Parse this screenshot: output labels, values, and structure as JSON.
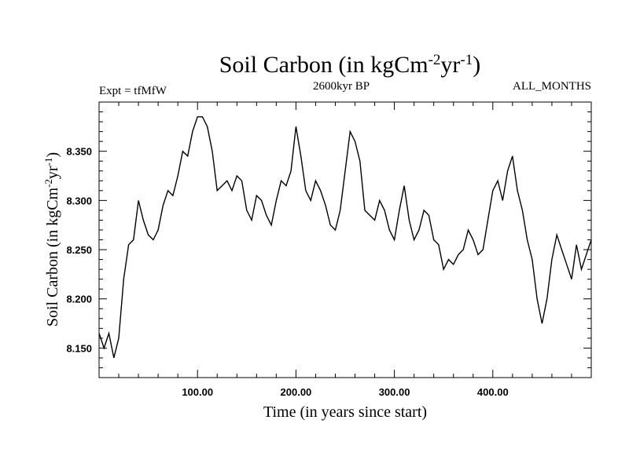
{
  "chart_data": {
    "type": "line",
    "title": "Soil Carbon (in kgCm",
    "title_unit_parts": [
      "-2",
      "yr",
      "-1",
      ")"
    ],
    "left_label": "Expt = tfMfW",
    "center_label": "2600kyr BP",
    "right_label": "ALL_MONTHS",
    "xlabel": "Time (in years since start)",
    "ylabel": "Soil Carbon (in kgCm",
    "ylabel_unit_parts": [
      "-2",
      "yr",
      "-1",
      ")"
    ],
    "xlim": [
      0,
      500
    ],
    "ylim": [
      8.12,
      8.4
    ],
    "xticks": [
      100,
      200,
      300,
      400
    ],
    "xtick_labels": [
      "100.00",
      "200.00",
      "300.00",
      "400.00"
    ],
    "yticks": [
      8.15,
      8.2,
      8.25,
      8.3,
      8.35
    ],
    "ytick_labels": [
      "8.150",
      "8.200",
      "8.250",
      "8.300",
      "8.350"
    ],
    "grid": false,
    "line_color": "#000000",
    "series": [
      {
        "name": "Soil Carbon",
        "x": [
          0,
          5,
          10,
          15,
          20,
          25,
          30,
          35,
          40,
          45,
          50,
          55,
          60,
          65,
          70,
          75,
          80,
          85,
          90,
          95,
          100,
          105,
          110,
          115,
          120,
          125,
          130,
          135,
          140,
          145,
          150,
          155,
          160,
          165,
          170,
          175,
          180,
          185,
          190,
          195,
          200,
          205,
          210,
          215,
          220,
          225,
          230,
          235,
          240,
          245,
          250,
          255,
          260,
          265,
          270,
          275,
          280,
          285,
          290,
          295,
          300,
          305,
          310,
          315,
          320,
          325,
          330,
          335,
          340,
          345,
          350,
          355,
          360,
          365,
          370,
          375,
          380,
          385,
          390,
          395,
          400,
          405,
          410,
          415,
          420,
          425,
          430,
          435,
          440,
          445,
          450,
          455,
          460,
          465,
          470,
          475,
          480,
          485,
          490,
          495,
          500
        ],
        "values": [
          8.165,
          8.15,
          8.165,
          8.14,
          8.16,
          8.22,
          8.255,
          8.26,
          8.3,
          8.28,
          8.265,
          8.26,
          8.27,
          8.295,
          8.31,
          8.305,
          8.325,
          8.35,
          8.345,
          8.37,
          8.385,
          8.385,
          8.375,
          8.35,
          8.31,
          8.315,
          8.32,
          8.31,
          8.325,
          8.32,
          8.29,
          8.28,
          8.305,
          8.3,
          8.285,
          8.275,
          8.3,
          8.32,
          8.315,
          8.33,
          8.375,
          8.345,
          8.31,
          8.3,
          8.32,
          8.31,
          8.295,
          8.275,
          8.27,
          8.29,
          8.33,
          8.37,
          8.36,
          8.34,
          8.29,
          8.285,
          8.28,
          8.3,
          8.29,
          8.27,
          8.26,
          8.29,
          8.315,
          8.28,
          8.26,
          8.27,
          8.29,
          8.285,
          8.26,
          8.255,
          8.23,
          8.24,
          8.235,
          8.245,
          8.25,
          8.27,
          8.26,
          8.245,
          8.25,
          8.28,
          8.31,
          8.32,
          8.3,
          8.33,
          8.345,
          8.31,
          8.29,
          8.26,
          8.24,
          8.2,
          8.175,
          8.2,
          8.24,
          8.265,
          8.25,
          8.235,
          8.22,
          8.255,
          8.23,
          8.245,
          8.26
        ]
      }
    ]
  }
}
